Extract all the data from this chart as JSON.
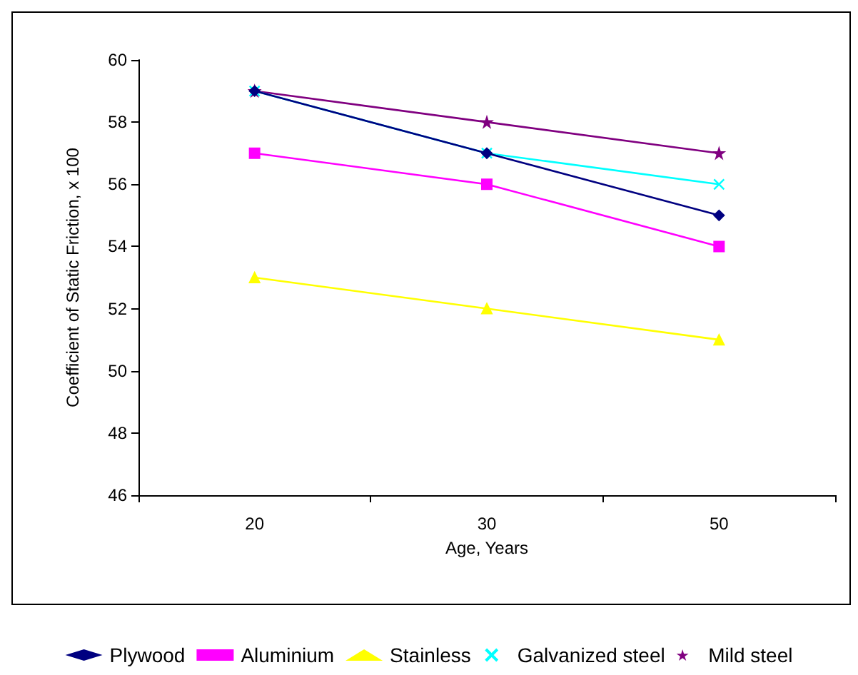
{
  "chart_data": {
    "type": "line",
    "xlabel": "Age, Years",
    "ylabel": "Coefficient of Static Friction, x 100",
    "categories": [
      "20",
      "30",
      "50"
    ],
    "series": [
      {
        "name": "Plywood",
        "color": "#000080",
        "marker": "diamond",
        "values": [
          59,
          57,
          55
        ]
      },
      {
        "name": "Aluminium",
        "color": "#ff00ff",
        "marker": "square",
        "values": [
          57,
          56,
          54
        ]
      },
      {
        "name": "Stainless",
        "color": "#ffff00",
        "marker": "triangle",
        "values": [
          53,
          52,
          51
        ]
      },
      {
        "name": "Galvanized steel",
        "color": "#00ffff",
        "marker": "cross",
        "values": [
          59,
          57,
          56
        ]
      },
      {
        "name": "Mild steel",
        "color": "#800080",
        "marker": "star",
        "values": [
          59,
          58,
          57
        ]
      }
    ],
    "ylim": [
      46,
      60
    ],
    "yticks": [
      46,
      48,
      50,
      52,
      54,
      56,
      58,
      60
    ],
    "grid": false,
    "legend": "bottom"
  }
}
